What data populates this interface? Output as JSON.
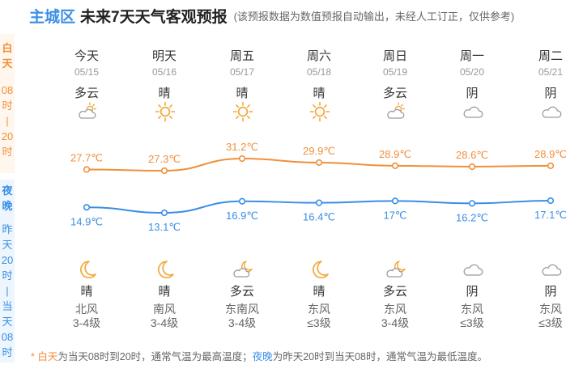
{
  "header": {
    "city": "主城区",
    "title": "未来7天天气客观预报",
    "note": "(该预报数据为数值预报自动输出，未经人工订正，仅供参考)"
  },
  "side": {
    "day_label": "白天",
    "day_range_start": "08时",
    "day_range_sep": "|",
    "day_range_end": "20时",
    "night_label": "夜晚",
    "night_range_start": "昨天20时",
    "night_range_sep": "|",
    "night_range_end": "当天08时"
  },
  "days": [
    {
      "name": "今天",
      "date": "05/15",
      "day_desc": "多云",
      "day_icon": "partly-cloudy-icon",
      "night_icon": "partly-cloudy-night-icon",
      "night_desc": "晴",
      "night_icon_name": "moon-icon",
      "wind_dir": "北风",
      "wind_level": "3-4级"
    },
    {
      "name": "明天",
      "date": "05/16",
      "day_desc": "晴",
      "day_icon": "sun-icon",
      "night_desc": "晴",
      "night_icon_name": "moon-icon",
      "wind_dir": "南风",
      "wind_level": "3-4级"
    },
    {
      "name": "周五",
      "date": "05/17",
      "day_desc": "晴",
      "day_icon": "sun-icon",
      "night_desc": "多云",
      "night_icon_name": "cloudy-night-icon",
      "wind_dir": "东南风",
      "wind_level": "3-4级"
    },
    {
      "name": "周六",
      "date": "05/18",
      "day_desc": "晴",
      "day_icon": "sun-icon",
      "night_desc": "晴",
      "night_icon_name": "moon-icon",
      "wind_dir": "东风",
      "wind_level": "≤3级"
    },
    {
      "name": "周日",
      "date": "05/19",
      "day_desc": "多云",
      "day_icon": "partly-cloudy-icon",
      "night_desc": "多云",
      "night_icon_name": "cloudy-night-icon",
      "wind_dir": "东风",
      "wind_level": "3-4级"
    },
    {
      "name": "周一",
      "date": "05/20",
      "day_desc": "阴",
      "day_icon": "cloud-icon",
      "night_desc": "阴",
      "night_icon_name": "cloud-icon",
      "wind_dir": "东风",
      "wind_level": "≤3级"
    },
    {
      "name": "周二",
      "date": "05/21",
      "day_desc": "阴",
      "day_icon": "cloud-icon",
      "night_desc": "阴",
      "night_icon_name": "cloud-icon",
      "wind_dir": "东风",
      "wind_level": "≤3级"
    }
  ],
  "chart_data": {
    "type": "line",
    "categories": [
      "05/15",
      "05/16",
      "05/17",
      "05/18",
      "05/19",
      "05/20",
      "05/21"
    ],
    "series": [
      {
        "values": [
          27.7,
          27.3,
          31.2,
          29.9,
          28.9,
          28.6,
          28.9
        ],
        "labels": [
          "27.7℃",
          "27.3℃",
          "31.2℃",
          "29.9℃",
          "28.9℃",
          "28.6℃",
          "28.9℃"
        ],
        "color": "#f0903a"
      },
      {
        "values": [
          14.9,
          13.1,
          16.9,
          16.4,
          17.0,
          16.2,
          17.1
        ],
        "labels": [
          "14.9℃",
          "13.1℃",
          "16.9℃",
          "16.4℃",
          "17℃",
          "16.2℃",
          "17.1℃"
        ],
        "color": "#3a8ee6"
      }
    ]
  },
  "footer": {
    "star": "* ",
    "day_word": "白天",
    "day_text": "为当天08时到20时，通常气温为最高温度；",
    "night_word": "夜晚",
    "night_text": "为昨天20时到当天08时，通常气温为最低温度。"
  },
  "colors": {
    "accent": "#3a8ee6",
    "day": "#f0903a",
    "night": "#3a8ee6"
  }
}
